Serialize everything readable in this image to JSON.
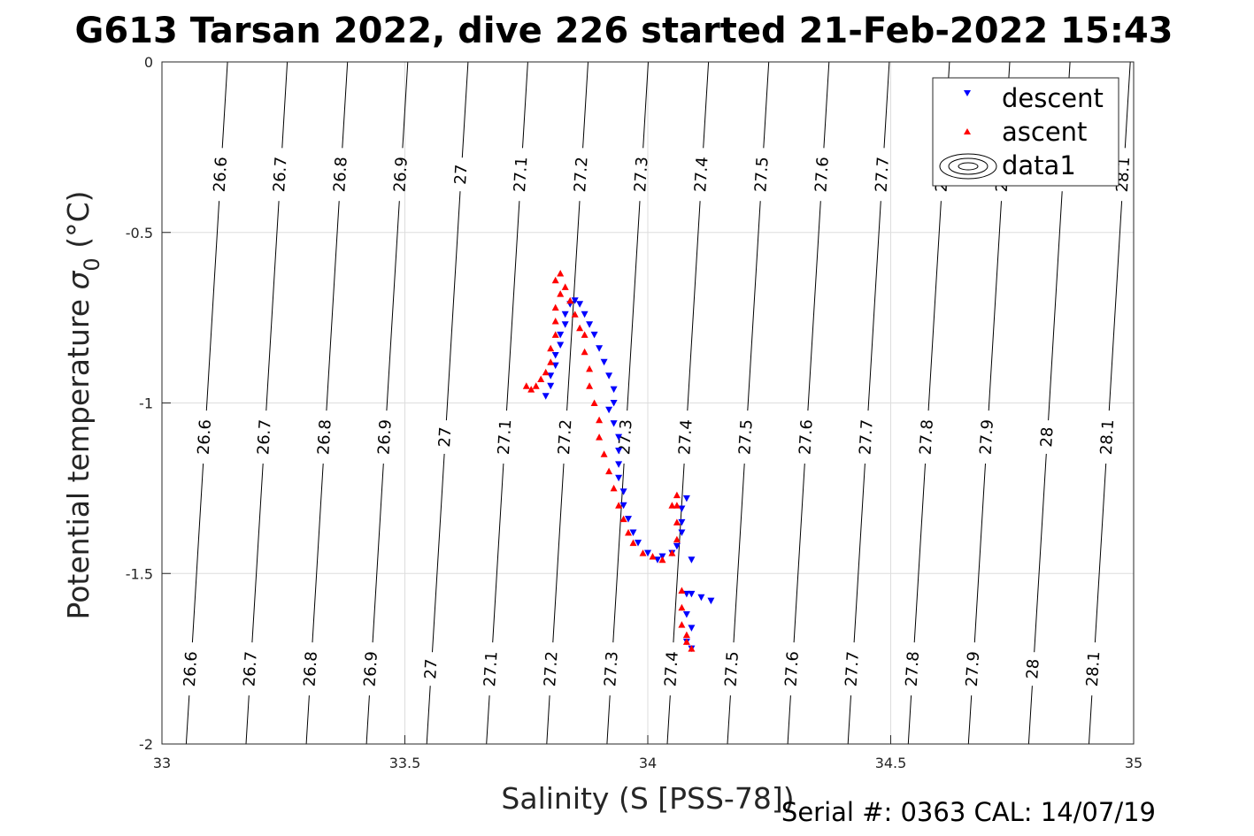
{
  "chart_data": {
    "type": "scatter",
    "title": "G613 Tarsan 2022, dive 226 started 21-Feb-2022 15:43",
    "xlabel": "Salinity (S [PSS-78])",
    "ylabel_main": "Potential temperature ",
    "ylabel_sym": "σ",
    "ylabel_sub": "0",
    "ylabel_unit": " (°C)",
    "xlim": [
      33,
      35
    ],
    "ylim": [
      -2,
      0
    ],
    "xticks": [
      "33",
      "33.5",
      "34",
      "34.5",
      "35"
    ],
    "yticks": [
      "0",
      "-0.5",
      "-1",
      "-1.5",
      "-2"
    ],
    "grid": true,
    "legend_position": "top-right",
    "legend": [
      "descent",
      "ascent",
      "data1"
    ],
    "colors": {
      "descent": "#0000ff",
      "ascent": "#ff0000",
      "contour": "#000000",
      "grid": "#dddddd"
    },
    "footer": "Serial #: 0363  CAL: 14/07/19",
    "isopycnals": [
      {
        "label": "26.6",
        "s_top": 33.135,
        "s_bot": 33.05
      },
      {
        "label": "26.7",
        "s_top": 33.258,
        "s_bot": 33.173
      },
      {
        "label": "26.8",
        "s_top": 33.382,
        "s_bot": 33.297
      },
      {
        "label": "26.9",
        "s_top": 33.506,
        "s_bot": 33.421
      },
      {
        "label": "27",
        "s_top": 33.63,
        "s_bot": 33.545
      },
      {
        "label": "27.1",
        "s_top": 33.753,
        "s_bot": 33.668
      },
      {
        "label": "27.2",
        "s_top": 33.877,
        "s_bot": 33.792
      },
      {
        "label": "27.3",
        "s_top": 34.001,
        "s_bot": 33.916
      },
      {
        "label": "27.4",
        "s_top": 34.125,
        "s_bot": 34.04
      },
      {
        "label": "27.5",
        "s_top": 34.249,
        "s_bot": 34.164
      },
      {
        "label": "27.6",
        "s_top": 34.373,
        "s_bot": 34.288
      },
      {
        "label": "27.7",
        "s_top": 34.497,
        "s_bot": 34.412
      },
      {
        "label": "27.8",
        "s_top": 34.621,
        "s_bot": 34.536
      },
      {
        "label": "27.9",
        "s_top": 34.745,
        "s_bot": 34.66
      },
      {
        "label": "28",
        "s_top": 34.869,
        "s_bot": 34.784
      },
      {
        "label": "28.1",
        "s_top": 34.993,
        "s_bot": 34.908
      }
    ],
    "series": [
      {
        "name": "descent",
        "marker": "triangle-down",
        "points": [
          [
            33.79,
            -0.98
          ],
          [
            33.8,
            -0.95
          ],
          [
            33.8,
            -0.92
          ],
          [
            33.81,
            -0.89
          ],
          [
            33.81,
            -0.86
          ],
          [
            33.82,
            -0.83
          ],
          [
            33.82,
            -0.8
          ],
          [
            33.83,
            -0.77
          ],
          [
            33.83,
            -0.74
          ],
          [
            33.84,
            -0.71
          ],
          [
            33.85,
            -0.7
          ],
          [
            33.86,
            -0.71
          ],
          [
            33.87,
            -0.74
          ],
          [
            33.88,
            -0.77
          ],
          [
            33.89,
            -0.8
          ],
          [
            33.9,
            -0.84
          ],
          [
            33.91,
            -0.88
          ],
          [
            33.92,
            -0.92
          ],
          [
            33.93,
            -0.96
          ],
          [
            33.93,
            -1.0
          ],
          [
            33.92,
            -1.02
          ],
          [
            33.93,
            -1.06
          ],
          [
            33.94,
            -1.1
          ],
          [
            33.94,
            -1.14
          ],
          [
            33.94,
            -1.18
          ],
          [
            33.94,
            -1.22
          ],
          [
            33.95,
            -1.26
          ],
          [
            33.95,
            -1.3
          ],
          [
            33.96,
            -1.34
          ],
          [
            33.97,
            -1.38
          ],
          [
            33.98,
            -1.41
          ],
          [
            34.0,
            -1.44
          ],
          [
            34.02,
            -1.46
          ],
          [
            34.03,
            -1.45
          ],
          [
            34.05,
            -1.44
          ],
          [
            34.06,
            -1.42
          ],
          [
            34.07,
            -1.38
          ],
          [
            34.07,
            -1.35
          ],
          [
            34.07,
            -1.31
          ],
          [
            34.08,
            -1.28
          ],
          [
            34.09,
            -1.46
          ],
          [
            34.08,
            -1.56
          ],
          [
            34.09,
            -1.56
          ],
          [
            34.11,
            -1.57
          ],
          [
            34.13,
            -1.58
          ],
          [
            34.08,
            -1.62
          ],
          [
            34.09,
            -1.66
          ],
          [
            34.08,
            -1.7
          ],
          [
            34.09,
            -1.72
          ]
        ]
      },
      {
        "name": "ascent",
        "marker": "triangle-up",
        "points": [
          [
            33.75,
            -0.95
          ],
          [
            33.76,
            -0.96
          ],
          [
            33.77,
            -0.95
          ],
          [
            33.78,
            -0.93
          ],
          [
            33.79,
            -0.91
          ],
          [
            33.8,
            -0.88
          ],
          [
            33.8,
            -0.84
          ],
          [
            33.81,
            -0.8
          ],
          [
            33.81,
            -0.76
          ],
          [
            33.81,
            -0.72
          ],
          [
            33.82,
            -0.68
          ],
          [
            33.81,
            -0.64
          ],
          [
            33.82,
            -0.62
          ],
          [
            33.83,
            -0.66
          ],
          [
            33.84,
            -0.7
          ],
          [
            33.85,
            -0.74
          ],
          [
            33.86,
            -0.78
          ],
          [
            33.87,
            -0.8
          ],
          [
            33.87,
            -0.85
          ],
          [
            33.88,
            -0.9
          ],
          [
            33.88,
            -0.95
          ],
          [
            33.89,
            -1.0
          ],
          [
            33.9,
            -1.05
          ],
          [
            33.9,
            -1.1
          ],
          [
            33.91,
            -1.15
          ],
          [
            33.92,
            -1.2
          ],
          [
            33.93,
            -1.25
          ],
          [
            33.94,
            -1.3
          ],
          [
            33.95,
            -1.34
          ],
          [
            33.96,
            -1.38
          ],
          [
            33.97,
            -1.41
          ],
          [
            33.99,
            -1.44
          ],
          [
            34.01,
            -1.45
          ],
          [
            34.03,
            -1.46
          ],
          [
            34.05,
            -1.44
          ],
          [
            34.06,
            -1.4
          ],
          [
            34.06,
            -1.35
          ],
          [
            34.06,
            -1.3
          ],
          [
            34.06,
            -1.27
          ],
          [
            34.05,
            -1.3
          ],
          [
            34.07,
            -1.55
          ],
          [
            34.07,
            -1.6
          ],
          [
            34.07,
            -1.65
          ],
          [
            34.08,
            -1.68
          ],
          [
            34.08,
            -1.7
          ],
          [
            34.09,
            -1.72
          ]
        ]
      }
    ]
  }
}
